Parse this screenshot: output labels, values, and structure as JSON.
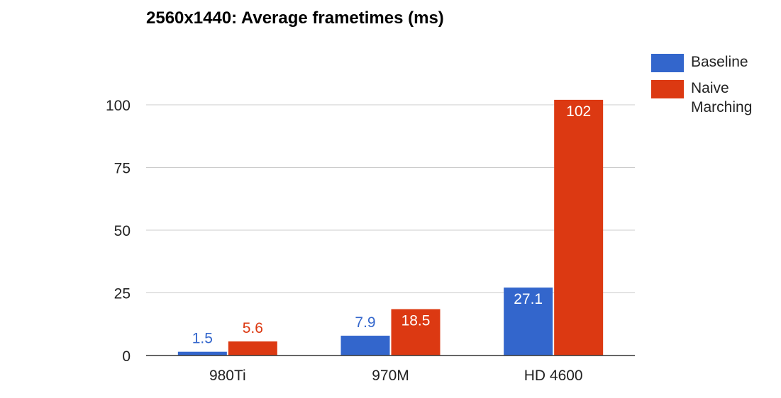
{
  "chart_data": {
    "type": "bar",
    "title": "2560x1440: Average frametimes (ms)",
    "xlabel": "",
    "ylabel": "",
    "categories": [
      "980Ti",
      "970M",
      "HD 4600"
    ],
    "series": [
      {
        "name": "Baseline",
        "color": "#3366cc",
        "values": [
          1.5,
          7.9,
          27.1
        ],
        "labels": [
          "1.5",
          "7.9",
          "27.1"
        ]
      },
      {
        "name": "Naive Marching",
        "color": "#dc3912",
        "values": [
          5.6,
          18.5,
          102
        ],
        "labels": [
          "5.6",
          "18.5",
          "102"
        ]
      }
    ],
    "ylim": [
      0,
      100
    ],
    "yticks": [
      0,
      25,
      50,
      75,
      100
    ],
    "ytick_labels": [
      "0",
      "25",
      "50",
      "75",
      "100"
    ],
    "grid": true,
    "legend_position": "top-right"
  }
}
